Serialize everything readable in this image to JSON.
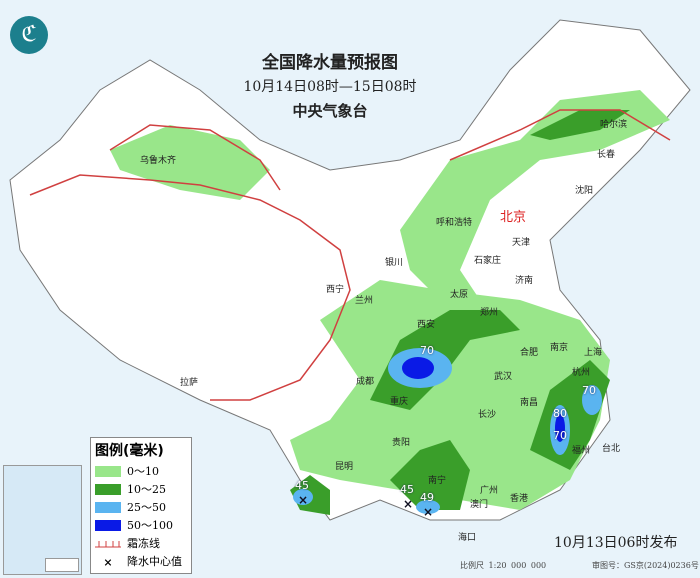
{
  "header": {
    "title": "全国降水量预报图",
    "period": "10月14日08时—15日08时",
    "issuer": "中央气象台",
    "logo_icon": "cma-logo-icon"
  },
  "legend": {
    "title": "图例(毫米)",
    "items": [
      {
        "label": "0～10",
        "color": "#99e68a"
      },
      {
        "label": "10～25",
        "color": "#3a9e2a"
      },
      {
        "label": "25～50",
        "color": "#5ab4f0"
      },
      {
        "label": "50～100",
        "color": "#0a1ae6"
      },
      {
        "label": "霜冻线",
        "color": "#d04040",
        "icon": "frost-line-icon"
      },
      {
        "label": "降水中心值",
        "icon": "x-mark-icon"
      }
    ]
  },
  "cities": [
    "乌鲁木齐",
    "哈尔滨",
    "长春",
    "沈阳",
    "北京",
    "天津",
    "呼和浩特",
    "石家庄",
    "太原",
    "济南",
    "银川",
    "西宁",
    "兰州",
    "西安",
    "郑州",
    "合肥",
    "南京",
    "上海",
    "杭州",
    "武汉",
    "成都",
    "重庆",
    "拉萨",
    "长沙",
    "南昌",
    "福州",
    "台北",
    "贵阳",
    "昆明",
    "南宁",
    "广州",
    "澳门",
    "香港",
    "海口"
  ],
  "rain_centers": [
    {
      "value": "70"
    },
    {
      "value": "70"
    },
    {
      "value": "80"
    },
    {
      "value": "70"
    },
    {
      "value": "45"
    },
    {
      "value": "45"
    },
    {
      "value": "49"
    }
  ],
  "footer": {
    "published": "10月13日06时发布",
    "scale": "比例尺 1:20 000 000",
    "approval": "审图号：GS京(2024)0236号"
  }
}
